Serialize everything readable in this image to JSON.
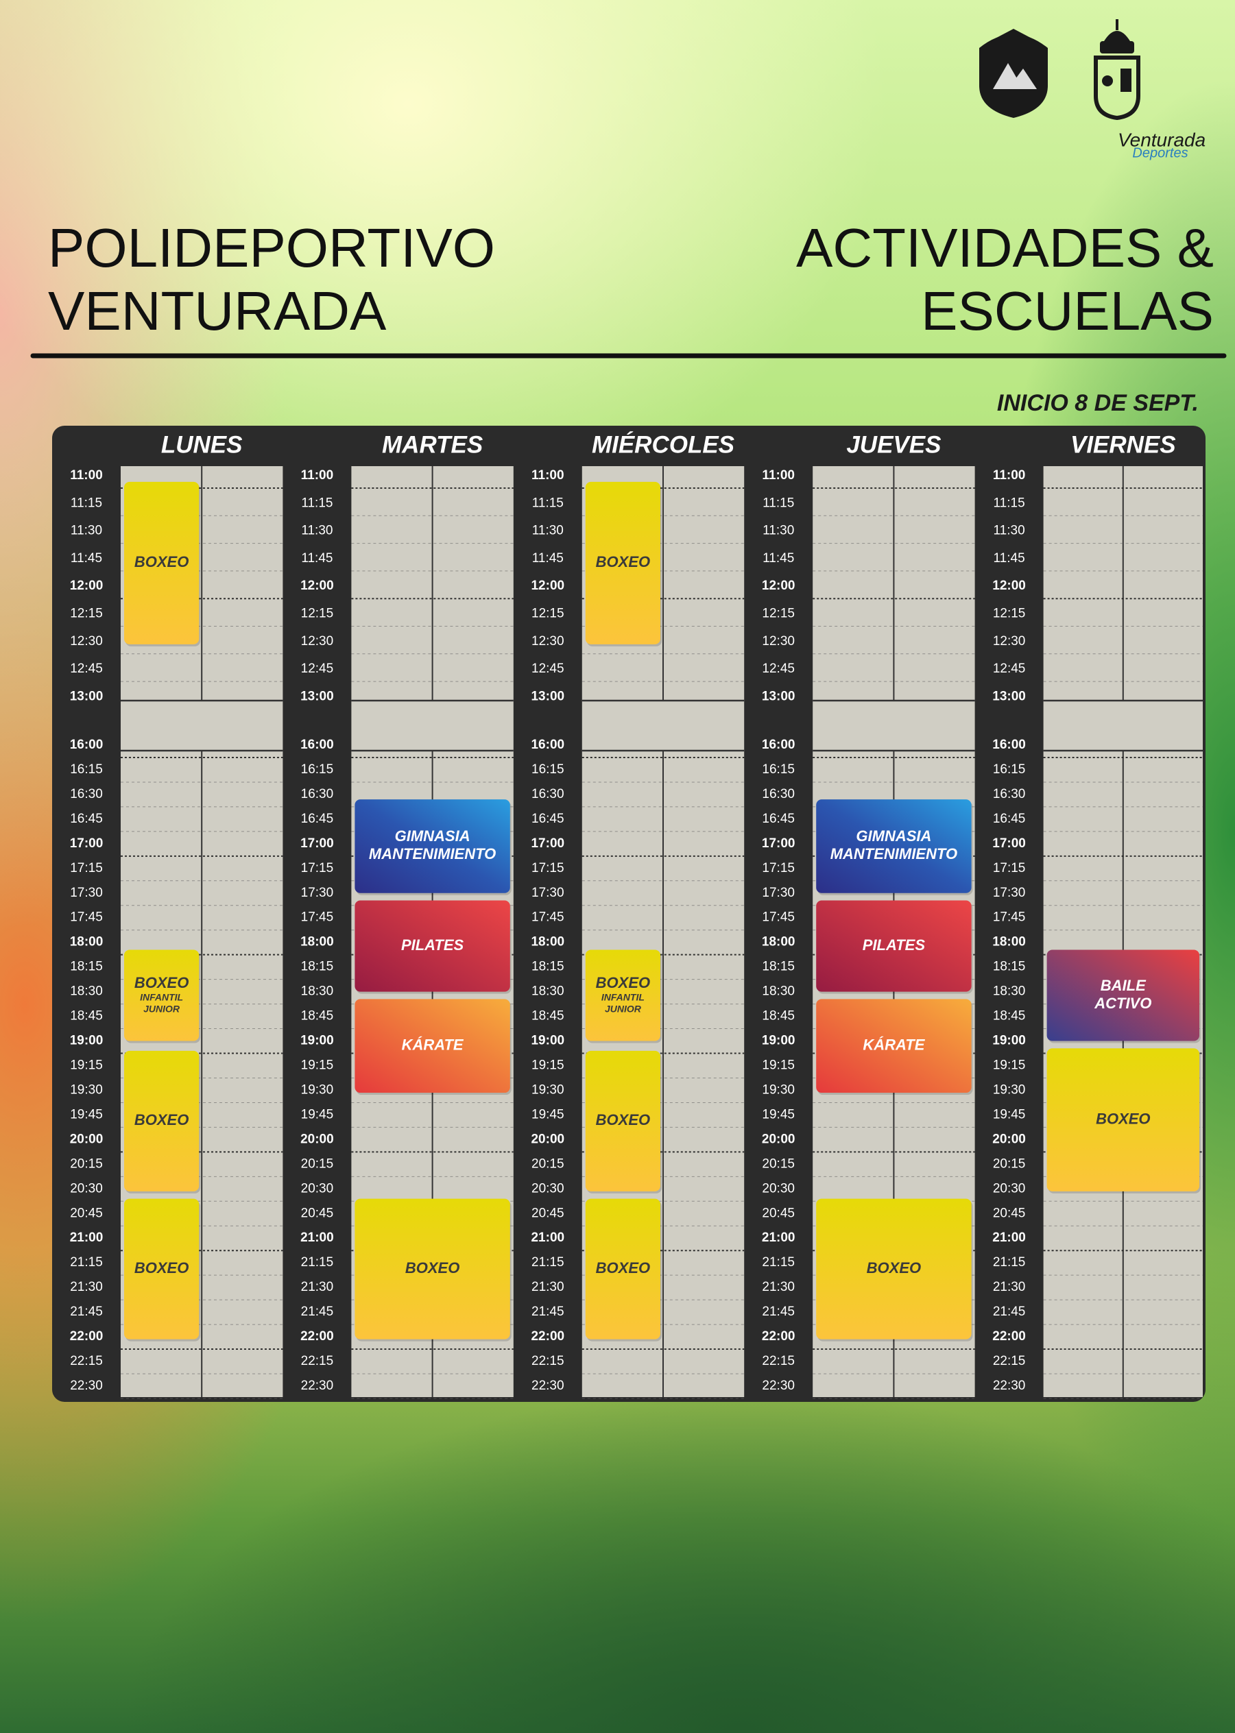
{
  "header": {
    "title_left": [
      "POLIDEPORTIVO",
      "VENTURADA"
    ],
    "title_right": [
      "ACTIVIDADES &",
      "ESCUELAS"
    ],
    "start_note": "INICIO 8 DE SEPT."
  },
  "logo": {
    "brand": "Venturada",
    "sub": "Deportes"
  },
  "schedule": {
    "morning_times": [
      "11:00",
      "11:15",
      "11:30",
      "11:45",
      "12:00",
      "12:15",
      "12:30",
      "12:45",
      "13:00"
    ],
    "afternoon_times": [
      "16:00",
      "16:15",
      "16:30",
      "16:45",
      "17:00",
      "17:15",
      "17:30",
      "17:45",
      "18:00",
      "18:15",
      "18:30",
      "18:45",
      "19:00",
      "19:15",
      "19:30",
      "19:45",
      "20:00",
      "20:15",
      "20:30",
      "20:45",
      "21:00",
      "21:15",
      "21:30",
      "21:45",
      "22:00",
      "22:15",
      "22:30"
    ],
    "days": [
      {
        "name": "LUNES",
        "activities": [
          {
            "title": [
              "BOXEO"
            ]
          },
          {
            "title": [
              "BOXEO"
            ],
            "subtitle": [
              "INFANTIL",
              "JUNIOR"
            ]
          },
          {
            "title": [
              "BOXEO"
            ]
          },
          {
            "title": [
              "BOXEO"
            ]
          }
        ]
      },
      {
        "name": "MARTES",
        "activities": [
          {
            "title": [
              "GIMNASIA",
              "MANTENIMIENTO"
            ]
          },
          {
            "title": [
              "PILATES"
            ]
          },
          {
            "title": [
              "KÁRATE"
            ]
          },
          {
            "title": [
              "BOXEO"
            ]
          }
        ]
      },
      {
        "name": "MIÉRCOLES",
        "activities": [
          {
            "title": [
              "BOXEO"
            ]
          },
          {
            "title": [
              "BOXEO"
            ],
            "subtitle": [
              "INFANTIL",
              "JUNIOR"
            ]
          },
          {
            "title": [
              "BOXEO"
            ]
          },
          {
            "title": [
              "BOXEO"
            ]
          }
        ]
      },
      {
        "name": "JUEVES",
        "activities": [
          {
            "title": [
              "GIMNASIA",
              "MANTENIMIENTO"
            ]
          },
          {
            "title": [
              "PILATES"
            ]
          },
          {
            "title": [
              "KÁRATE"
            ]
          },
          {
            "title": [
              "BOXEO"
            ]
          }
        ]
      },
      {
        "name": "VIERNES",
        "activities": [
          {
            "title": [
              "BAILE",
              "ACTIVO"
            ]
          },
          {
            "title": [
              "BOXEO"
            ]
          }
        ]
      }
    ]
  }
}
